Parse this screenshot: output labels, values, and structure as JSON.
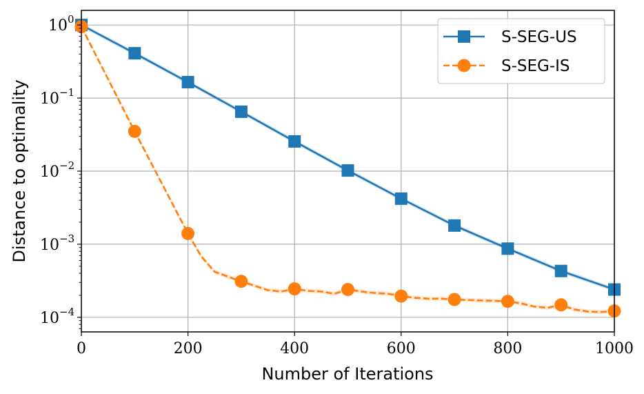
{
  "chart_data": {
    "type": "line",
    "xlabel": "Number of Iterations",
    "ylabel": "Distance to optimality",
    "xlim": [
      0,
      1000
    ],
    "ylim_log10": [
      -4.2,
      0.2
    ],
    "y_scale": "log",
    "grid": true,
    "legend_position": "top-right",
    "x_ticks": [
      0,
      200,
      400,
      600,
      800,
      1000
    ],
    "y_ticks": [
      {
        "base": "10",
        "exp": "0",
        "value": 1
      },
      {
        "base": "10",
        "exp": "−1",
        "value": 0.1
      },
      {
        "base": "10",
        "exp": "−2",
        "value": 0.01
      },
      {
        "base": "10",
        "exp": "−3",
        "value": 0.001
      },
      {
        "base": "10",
        "exp": "−4",
        "value": 0.0001
      }
    ],
    "series": [
      {
        "name": "S-SEG-US",
        "color": "#1f77b4",
        "line_style": "solid",
        "marker": "square",
        "x": [
          0,
          100,
          200,
          300,
          400,
          500,
          600,
          700,
          800,
          900,
          1000
        ],
        "y": [
          1.0,
          0.41,
          0.165,
          0.065,
          0.0255,
          0.0102,
          0.0042,
          0.0018,
          0.00087,
          0.00043,
          0.00024
        ]
      },
      {
        "name": "S-SEG-IS",
        "color": "#ff7f0e",
        "line_style": "dashed",
        "marker": "circle",
        "x": [
          0,
          100,
          200,
          300,
          400,
          500,
          600,
          700,
          800,
          900,
          1000
        ],
        "y": [
          0.95,
          0.035,
          0.0014,
          0.00031,
          0.000245,
          0.00024,
          0.000195,
          0.000175,
          0.000165,
          0.000148,
          0.000122
        ],
        "line_x": [
          0,
          100,
          200,
          225,
          250,
          275,
          300,
          325,
          350,
          375,
          400,
          425,
          450,
          475,
          500,
          525,
          550,
          575,
          600,
          625,
          650,
          675,
          700,
          725,
          750,
          775,
          800,
          825,
          850,
          875,
          900,
          925,
          950,
          975,
          1000
        ],
        "line_y": [
          0.95,
          0.035,
          0.0014,
          0.00068,
          0.00042,
          0.00036,
          0.00031,
          0.00027,
          0.000235,
          0.000225,
          0.000245,
          0.00023,
          0.000225,
          0.00021,
          0.00024,
          0.000225,
          0.000215,
          0.00021,
          0.000195,
          0.000185,
          0.00018,
          0.00018,
          0.000175,
          0.000172,
          0.00017,
          0.000168,
          0.000165,
          0.000155,
          0.00014,
          0.000135,
          0.000148,
          0.000128,
          0.00012,
          0.000118,
          0.000122
        ]
      }
    ]
  }
}
